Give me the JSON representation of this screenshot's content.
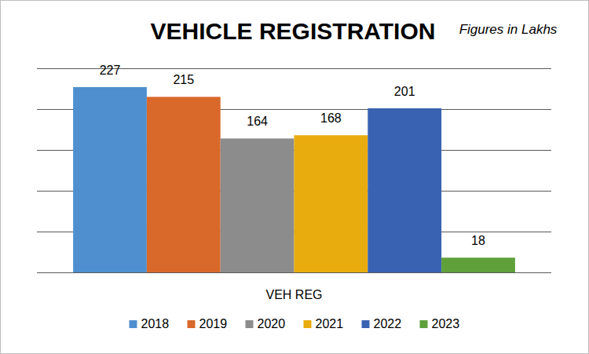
{
  "chart_data": {
    "type": "bar",
    "title": "VEHICLE REGISTRATION",
    "subtitle": "Figures in Lakhs",
    "categories": [
      "VEH REG"
    ],
    "series": [
      {
        "name": "2018",
        "color": "#4f8fcf",
        "values": [
          227
        ]
      },
      {
        "name": "2019",
        "color": "#d9692b",
        "values": [
          215
        ]
      },
      {
        "name": "2020",
        "color": "#8c8c8c",
        "values": [
          164
        ]
      },
      {
        "name": "2021",
        "color": "#e8ac0e",
        "values": [
          168
        ]
      },
      {
        "name": "2022",
        "color": "#3a62b3",
        "values": [
          201
        ]
      },
      {
        "name": "2023",
        "color": "#5fa03a",
        "values": [
          18
        ]
      }
    ],
    "ylim": [
      0,
      250
    ],
    "yticks": [
      0,
      50,
      100,
      150,
      200,
      250
    ],
    "grid": true,
    "data_labels": true,
    "legend": "bottom",
    "tick_labels": "x"
  }
}
